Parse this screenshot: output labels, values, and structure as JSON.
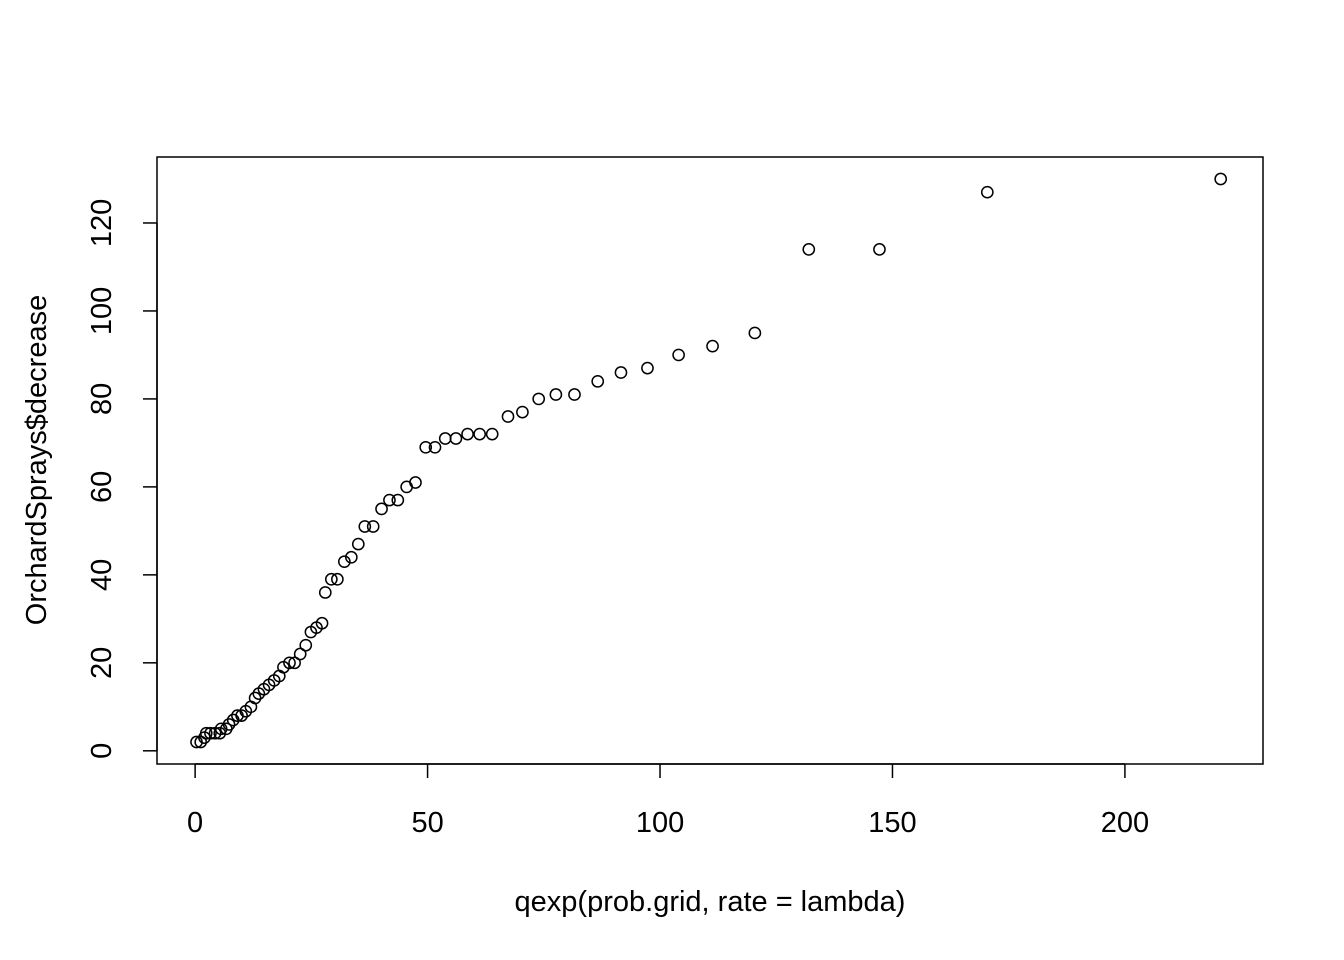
{
  "chart_data": {
    "type": "scatter",
    "title": "",
    "xlabel": "qexp(prob.grid, rate = lambda)",
    "ylabel": "OrchardSprays$decrease",
    "xlim": [
      -8.2,
      229.7
    ],
    "ylim": [
      -3,
      135
    ],
    "x_ticks": [
      0,
      50,
      100,
      150,
      200
    ],
    "x_tick_labels": [
      "0",
      "50",
      "100",
      "150",
      "200"
    ],
    "y_ticks": [
      0,
      20,
      40,
      60,
      80,
      100,
      120
    ],
    "y_tick_labels": [
      "0",
      "20",
      "40",
      "60",
      "80",
      "100",
      "120"
    ],
    "grid": false,
    "legend": "none",
    "marker": "open-circle",
    "point_color": "#000000",
    "points": [
      [
        0.3,
        2
      ],
      [
        1.2,
        2
      ],
      [
        2.0,
        3
      ],
      [
        2.4,
        4
      ],
      [
        3.3,
        4
      ],
      [
        4.3,
        4
      ],
      [
        5.3,
        4
      ],
      [
        5.6,
        5
      ],
      [
        6.7,
        5
      ],
      [
        7.3,
        6
      ],
      [
        8.2,
        7
      ],
      [
        9.1,
        8
      ],
      [
        10.0,
        8
      ],
      [
        10.9,
        9
      ],
      [
        12.0,
        10
      ],
      [
        12.9,
        12
      ],
      [
        13.7,
        13
      ],
      [
        14.8,
        14
      ],
      [
        15.9,
        15
      ],
      [
        17.0,
        16
      ],
      [
        18.1,
        17
      ],
      [
        19.0,
        19
      ],
      [
        20.3,
        20
      ],
      [
        21.4,
        20
      ],
      [
        22.6,
        22
      ],
      [
        23.8,
        24
      ],
      [
        24.9,
        27
      ],
      [
        26.1,
        28
      ],
      [
        27.3,
        29
      ],
      [
        28.0,
        36
      ],
      [
        29.3,
        39
      ],
      [
        30.6,
        39
      ],
      [
        32.1,
        43
      ],
      [
        33.6,
        44
      ],
      [
        35.1,
        47
      ],
      [
        36.5,
        51
      ],
      [
        38.3,
        51
      ],
      [
        40.1,
        55
      ],
      [
        41.8,
        57
      ],
      [
        43.6,
        57
      ],
      [
        45.5,
        60
      ],
      [
        47.4,
        61
      ],
      [
        49.6,
        69
      ],
      [
        51.6,
        69
      ],
      [
        53.8,
        71
      ],
      [
        56.1,
        71
      ],
      [
        58.6,
        72
      ],
      [
        61.2,
        72
      ],
      [
        63.9,
        72
      ],
      [
        67.3,
        76
      ],
      [
        70.4,
        77
      ],
      [
        73.9,
        80
      ],
      [
        77.6,
        81
      ],
      [
        81.6,
        81
      ],
      [
        86.6,
        84
      ],
      [
        91.6,
        86
      ],
      [
        97.3,
        87
      ],
      [
        104.0,
        90
      ],
      [
        111.3,
        92
      ],
      [
        120.4,
        95
      ],
      [
        132.0,
        114
      ],
      [
        147.2,
        114
      ],
      [
        170.4,
        127
      ],
      [
        220.6,
        130
      ]
    ]
  }
}
